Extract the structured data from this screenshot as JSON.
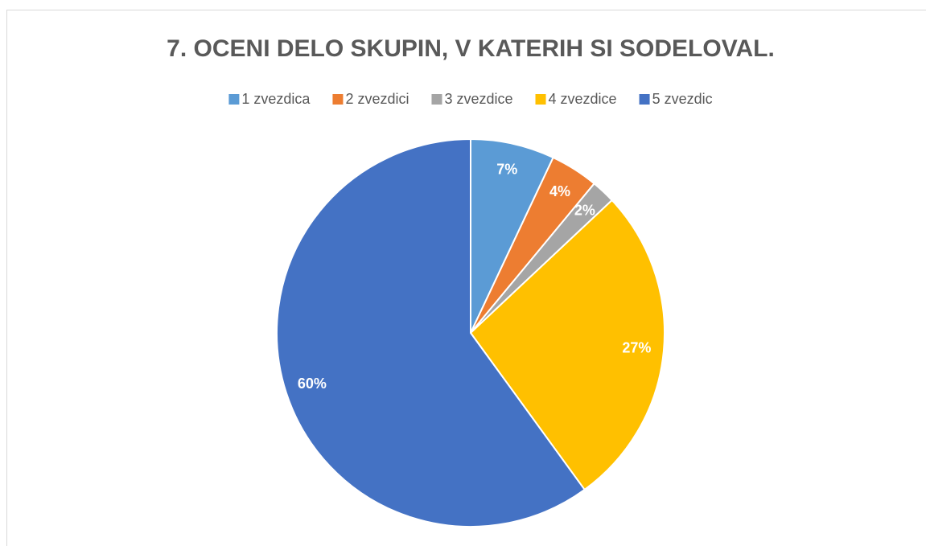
{
  "chart_data": {
    "type": "pie",
    "title": "7. OCENI DELO SKUPIN, V KATERIH SI SODELOVAL.",
    "categories": [
      "1 zvezdica",
      "2 zvezdici",
      "3 zvezdice",
      "4 zvezdice",
      "5 zvezdic"
    ],
    "values": [
      7,
      4,
      2,
      27,
      60
    ],
    "value_labels": [
      "7%",
      "4%",
      "2%",
      "27%",
      "60%"
    ],
    "colors": [
      "#5b9bd5",
      "#ed7d31",
      "#a5a5a5",
      "#ffc000",
      "#4472c4"
    ],
    "legend": "top"
  }
}
